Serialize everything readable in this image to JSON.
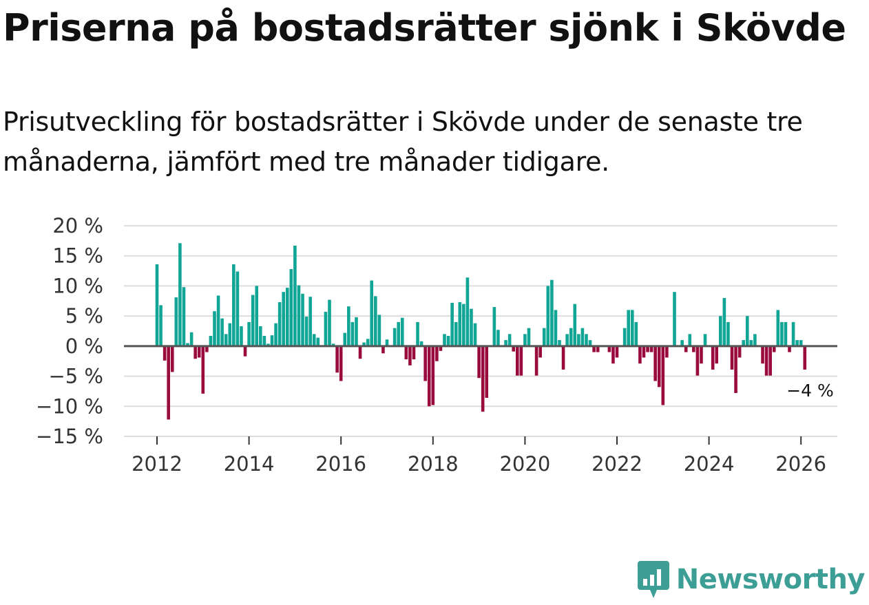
{
  "title": "Priserna på bostadsrätter sjönk i Skövde",
  "subtitle": "Prisutveckling för bostadsrätter i Skövde under de senaste tre månaderna, jämfört med tre månader tidigare.",
  "brand": {
    "name": "Newsworthy",
    "color": "#3d9e95"
  },
  "colors": {
    "positive": "#11a596",
    "negative": "#990a3d",
    "grid": "#dddddd",
    "zero_line": "#555555"
  },
  "chart_data": {
    "type": "bar",
    "title": "Priserna på bostadsrätter sjönk i Skövde",
    "subtitle": "Prisutveckling för bostadsrätter i Skövde under de senaste tre månaderna, jämfört med tre månader tidigare.",
    "xlabel": "",
    "ylabel": "",
    "unit": "%",
    "x_start": "2012-01",
    "frequency": "monthly",
    "ylim": [
      -15,
      20
    ],
    "yticks": [
      20,
      15,
      10,
      5,
      0,
      -5,
      -10,
      -15
    ],
    "ytick_labels": [
      "20 %",
      "15 %",
      "10 %",
      "5 %",
      "0 %",
      "−5 %",
      "−10 %",
      "−15 %"
    ],
    "xticks": [
      "2012",
      "2014",
      "2016",
      "2018",
      "2020",
      "2022",
      "2024",
      "2026"
    ],
    "grid": true,
    "values": [
      13.6,
      6.8,
      -2.4,
      -12.2,
      -4.3,
      8.1,
      17.1,
      9.8,
      0.5,
      2.3,
      -2.1,
      -1.9,
      -7.9,
      -1.0,
      1.7,
      5.8,
      8.4,
      4.6,
      2.0,
      3.8,
      13.6,
      12.4,
      3.3,
      -1.7,
      4.0,
      8.5,
      10.0,
      3.3,
      1.7,
      0.4,
      1.8,
      3.8,
      7.3,
      9.0,
      9.7,
      12.8,
      16.7,
      10.1,
      8.7,
      4.9,
      8.2,
      2.0,
      1.4,
      0.0,
      5.7,
      7.7,
      0.4,
      -4.4,
      -5.8,
      2.2,
      6.6,
      4.0,
      4.8,
      -2.1,
      0.6,
      1.2,
      10.9,
      8.3,
      5.2,
      -1.2,
      1.1,
      0.0,
      3.0,
      4.0,
      4.7,
      -2.2,
      -3.2,
      -2.2,
      4.0,
      0.8,
      -5.8,
      -10.0,
      -9.8,
      -2.5,
      -0.8,
      2.0,
      1.7,
      7.2,
      4.0,
      7.3,
      7.0,
      11.4,
      6.2,
      3.8,
      -5.3,
      -10.9,
      -8.6,
      0.0,
      6.5,
      2.7,
      0.0,
      1.0,
      2.0,
      -0.9,
      -4.9,
      -4.9,
      2.0,
      3.0,
      0.0,
      -4.9,
      -1.9,
      3.0,
      10.0,
      11.0,
      6.0,
      1.0,
      -3.9,
      2.0,
      3.0,
      7.0,
      2.0,
      3.0,
      2.0,
      1.0,
      -1.0,
      -1.0,
      0.0,
      0.0,
      -1.0,
      -2.9,
      -1.9,
      0.0,
      3.0,
      6.0,
      6.0,
      4.0,
      -2.9,
      -1.9,
      -1.0,
      -1.0,
      -5.8,
      -6.8,
      -9.8,
      -1.9,
      0.0,
      9.0,
      0.0,
      1.0,
      -1.0,
      2.0,
      -1.0,
      -4.9,
      -2.9,
      2.0,
      0.0,
      -3.9,
      -2.9,
      5.0,
      8.0,
      4.0,
      -3.9,
      -7.8,
      -1.9,
      1.0,
      5.0,
      1.0,
      2.0,
      0.0,
      -2.9,
      -4.9,
      -4.9,
      -1.0,
      6.0,
      4.0,
      4.0,
      -1.0,
      4.0,
      1.0,
      1.0,
      -3.9
    ],
    "annotation": {
      "label": "−4 %",
      "value": -4,
      "point": "last"
    }
  }
}
